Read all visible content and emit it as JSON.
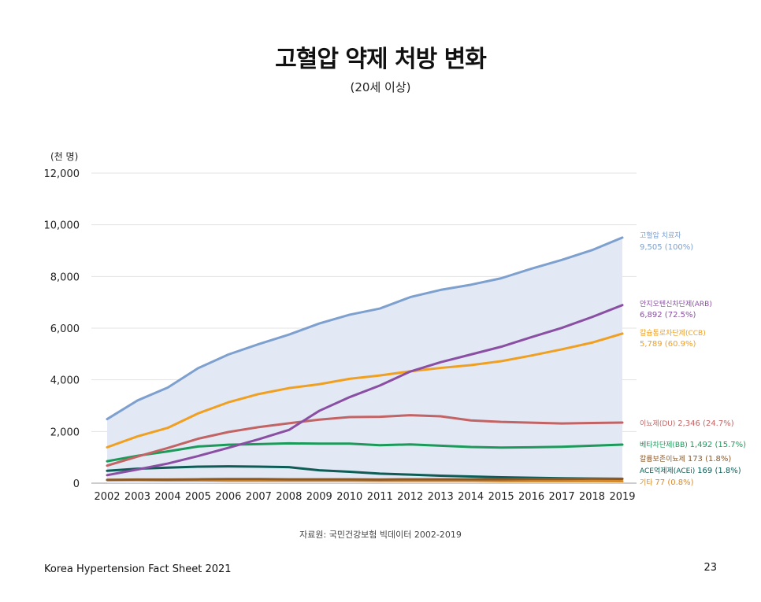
{
  "page": {
    "title": "고혈압 약제 처방 변화",
    "subtitle": "(20세 이상)",
    "source": "자료원: 국민건강보험 빅데이터 2002-2019",
    "footer": "Korea Hypertension Fact Sheet 2021",
    "page_number": "23"
  },
  "chart_data": {
    "type": "line",
    "y_unit_label": "(천 명)",
    "x": [
      2002,
      2003,
      2004,
      2005,
      2006,
      2007,
      2008,
      2009,
      2010,
      2011,
      2012,
      2013,
      2014,
      2015,
      2016,
      2017,
      2018,
      2019
    ],
    "x_tick_labels": [
      "2002",
      "2003",
      "2004",
      "2005",
      "2006",
      "2007",
      "2008",
      "2009",
      "2010",
      "2011",
      "2012",
      "2013",
      "2014",
      "2015",
      "2016",
      "2017",
      "2018",
      "2019"
    ],
    "ylim": [
      0,
      12000
    ],
    "y_ticks": [
      0,
      2000,
      4000,
      6000,
      8000,
      10000,
      12000
    ],
    "y_tick_labels": [
      "0",
      "2,000",
      "4,000",
      "6,000",
      "8,000",
      "10,000",
      "12,000"
    ],
    "grid": true,
    "series": [
      {
        "name": "고혈압 치료자",
        "end_label": "9,505 (100%)",
        "color": "#7da0cf",
        "area": true,
        "area_color": "#e3e8f5",
        "values": [
          2480,
          3200,
          3700,
          4450,
          4980,
          5380,
          5750,
          6180,
          6520,
          6760,
          7200,
          7480,
          7680,
          7930,
          8300,
          8640,
          9020,
          9505
        ]
      },
      {
        "name": "안지오텐신차단제(ARB)",
        "end_label": "6,892 (72.5%)",
        "color": "#8a4fa3",
        "values": [
          310,
          530,
          760,
          1050,
          1370,
          1700,
          2060,
          2800,
          3330,
          3780,
          4320,
          4680,
          4980,
          5280,
          5650,
          6010,
          6430,
          6892
        ]
      },
      {
        "name": "칼슘통로차단제(CCB)",
        "end_label": "5,789 (60.9%)",
        "color": "#f0a020",
        "values": [
          1390,
          1810,
          2140,
          2700,
          3130,
          3450,
          3680,
          3830,
          4040,
          4170,
          4330,
          4460,
          4570,
          4720,
          4940,
          5180,
          5440,
          5789
        ]
      },
      {
        "name": "이뇨제(DU)",
        "end_label": "2,346 (24.7%)",
        "color": "#c26464",
        "values": [
          680,
          1030,
          1360,
          1720,
          1980,
          2170,
          2320,
          2460,
          2560,
          2570,
          2630,
          2590,
          2430,
          2370,
          2340,
          2310,
          2330,
          2346
        ]
      },
      {
        "name": "베타차단제(BB)",
        "end_label": "1,492 (15.7%)",
        "color": "#1c9a5a",
        "values": [
          850,
          1060,
          1230,
          1420,
          1490,
          1510,
          1540,
          1530,
          1530,
          1470,
          1500,
          1450,
          1400,
          1380,
          1390,
          1410,
          1450,
          1492
        ]
      },
      {
        "name": "칼륨보존이뇨제",
        "end_label": "173 (1.8%)",
        "color": "#8b5a2b",
        "values": [
          130,
          140,
          140,
          150,
          160,
          160,
          150,
          150,
          150,
          140,
          150,
          150,
          150,
          150,
          160,
          160,
          170,
          173
        ]
      },
      {
        "name": "ACE억제제(ACEi)",
        "end_label": "169 (1.8%)",
        "color": "#0d5c55",
        "values": [
          480,
          560,
          600,
          640,
          650,
          640,
          620,
          500,
          440,
          370,
          330,
          290,
          260,
          230,
          210,
          190,
          180,
          169
        ]
      },
      {
        "name": "기타",
        "end_label": "77 (0.8%)",
        "color": "#d88a2a",
        "values": [
          120,
          120,
          110,
          110,
          100,
          100,
          100,
          100,
          100,
          90,
          90,
          90,
          90,
          80,
          80,
          80,
          80,
          77
        ]
      }
    ]
  }
}
